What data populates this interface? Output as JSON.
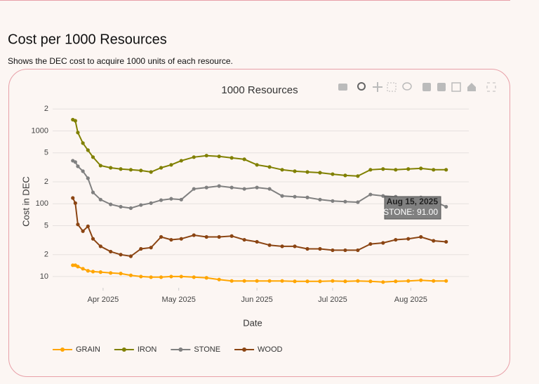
{
  "page": {
    "heading": "Cost per 1000 Resources",
    "description": "Shows the DEC cost to acquire 1000 units of each resource."
  },
  "chart_data": {
    "type": "line",
    "title": "1000 Resources",
    "x_label": "Date",
    "y_label": "Cost in DEC",
    "log_scale": true,
    "grid": true,
    "legend": "bottom-left",
    "x": [
      "2025-03-20",
      "2025-03-21",
      "2025-03-22",
      "2025-03-24",
      "2025-03-26",
      "2025-03-28",
      "2025-03-31",
      "2025-04-04",
      "2025-04-08",
      "2025-04-12",
      "2025-04-16",
      "2025-04-20",
      "2025-04-24",
      "2025-04-28",
      "2025-05-02",
      "2025-05-07",
      "2025-05-12",
      "2025-05-17",
      "2025-05-22",
      "2025-05-27",
      "2025-06-01",
      "2025-06-06",
      "2025-06-11",
      "2025-06-16",
      "2025-06-21",
      "2025-06-26",
      "2025-07-01",
      "2025-07-06",
      "2025-07-11",
      "2025-07-16",
      "2025-07-21",
      "2025-07-26",
      "2025-07-31",
      "2025-08-05",
      "2025-08-10",
      "2025-08-15"
    ],
    "xlim": [
      "2025-03-12",
      "2025-08-24"
    ],
    "xticks": [
      {
        "value": "2025-04-01",
        "label": "Apr 2025"
      },
      {
        "value": "2025-05-01",
        "label": "May 2025"
      },
      {
        "value": "2025-06-01",
        "label": "Jun 2025"
      },
      {
        "value": "2025-07-01",
        "label": "Jul 2025"
      },
      {
        "value": "2025-08-01",
        "label": "Aug 2025"
      }
    ],
    "ylim": [
      7,
      2250
    ],
    "yticks": [
      10,
      {
        "value": 20,
        "label": "2"
      },
      {
        "value": 50,
        "label": "5"
      },
      100,
      {
        "value": 200,
        "label": "2"
      },
      {
        "value": 500,
        "label": "5"
      },
      1000,
      {
        "value": 2000,
        "label": "2"
      }
    ],
    "series": [
      {
        "name": "GRAIN",
        "color": "#ffa500",
        "values": [
          14.3,
          14.3,
          13.7,
          12.8,
          12,
          11.7,
          11.5,
          11.2,
          11,
          10.4,
          10,
          9.8,
          9.8,
          10,
          10,
          9.8,
          9.6,
          9.1,
          8.7,
          8.7,
          8.7,
          8.7,
          8.7,
          8.6,
          8.6,
          8.6,
          8.7,
          8.6,
          8.7,
          8.6,
          8.4,
          8.6,
          8.7,
          8.9,
          8.7,
          8.7
        ]
      },
      {
        "name": "IRON",
        "color": "#808000",
        "values": [
          1430,
          1380,
          950,
          680,
          545,
          437,
          334,
          312,
          300,
          293,
          286,
          273,
          312,
          342,
          390,
          437,
          458,
          447,
          427,
          408,
          342,
          320,
          293,
          280,
          273,
          267,
          255,
          245,
          240,
          293,
          300,
          293,
          300,
          306,
          293,
          293
        ]
      },
      {
        "name": "STONE",
        "color": "#808080",
        "values": [
          390,
          374,
          327,
          280,
          224,
          143,
          114,
          98,
          91,
          87,
          96,
          102,
          112,
          117,
          114,
          160,
          167,
          175,
          167,
          160,
          167,
          160,
          128,
          125,
          122,
          114,
          109,
          107,
          105,
          134,
          128,
          125,
          120,
          122,
          109,
          91
        ]
      },
      {
        "name": "WOOD",
        "color": "#8b4513",
        "values": [
          120,
          102,
          52,
          42,
          49,
          33,
          26,
          22,
          20,
          19,
          24,
          25,
          35,
          32,
          33,
          37,
          35,
          35,
          36,
          32,
          30,
          27,
          26,
          26,
          24,
          24,
          23,
          23,
          23,
          28,
          29,
          32,
          33,
          35,
          31,
          30
        ]
      }
    ],
    "tooltip": {
      "title": "Aug 15, 2025",
      "text": "STONE: 91.00"
    }
  }
}
